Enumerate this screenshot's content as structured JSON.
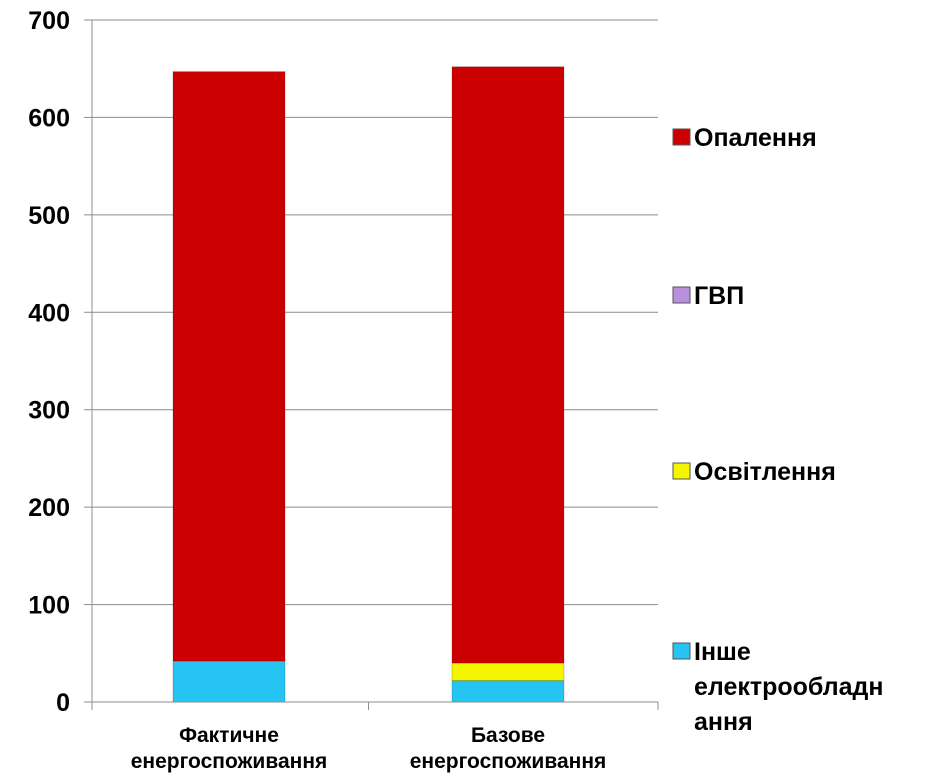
{
  "chart_data": {
    "type": "bar",
    "stacked": true,
    "categories": [
      [
        "Фактичне",
        "енергоспоживання"
      ],
      [
        "Базове",
        "енергоспоживання"
      ]
    ],
    "series": [
      {
        "name": "Інше електрообладнання",
        "legend_lines": [
          "Інше",
          "електрообладн",
          "ання"
        ],
        "color": "#25c4f2",
        "values": [
          42,
          22
        ]
      },
      {
        "name": "Освітлення",
        "legend_lines": [
          "Освітлення"
        ],
        "color": "#f5f500",
        "values": [
          0,
          18
        ]
      },
      {
        "name": "ГВП",
        "legend_lines": [
          "ГВП"
        ],
        "color": "#b98fe0",
        "values": [
          0,
          0
        ]
      },
      {
        "name": "Опалення",
        "legend_lines": [
          "Опалення"
        ],
        "color": "#cc0000",
        "values": [
          605,
          612
        ]
      }
    ],
    "ylim": [
      0,
      700
    ],
    "yticks": [
      0,
      100,
      200,
      300,
      400,
      500,
      600,
      700
    ],
    "grid": true,
    "legend": "right",
    "title": "",
    "xlabel": "",
    "ylabel": ""
  }
}
